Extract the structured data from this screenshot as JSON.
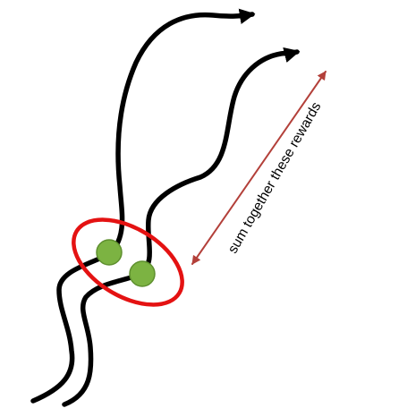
{
  "annotation": {
    "label": "sum together these rewards"
  },
  "colors": {
    "trajectory": "#000000",
    "highlight_ellipse": "#e41212",
    "state_marker_fill": "#7cb342",
    "state_marker_stroke": "#5e8f2e",
    "annotation_arrow": "#b3403a",
    "annotation_text": "#000000"
  }
}
